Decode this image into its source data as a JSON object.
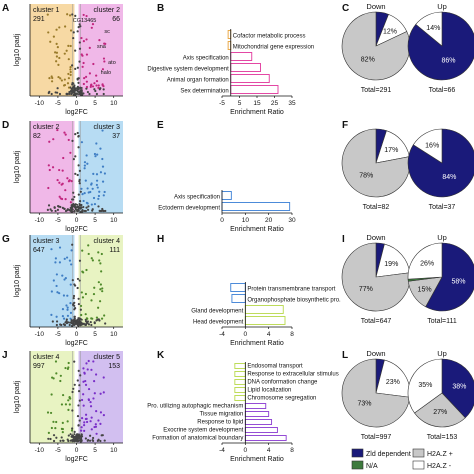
{
  "colors": {
    "cluster1": "#f7d9a4",
    "cluster2": "#f0b8e8",
    "cluster3": "#b7dcf3",
    "cluster4": "#e8f3c2",
    "cluster5": "#d2bff0",
    "pt_cluster1": "#9a7b2a",
    "pt_cluster2": "#c2267f",
    "pt_cluster3": "#3f7ec4",
    "pt_cluster4": "#4f8a2a",
    "pt_cluster5": "#7a2fc8",
    "pt_gray": "#444444",
    "bar_B": "#e0369b",
    "bar_B_alt": "#e8a33a",
    "bar_E": "#3a7fd5",
    "bar_H": "#b8d94a",
    "bar_H_alt": "#3a7fd5",
    "bar_K": "#8a3ad1",
    "bar_K_alt": "#b8d94a",
    "pie_down_gray": "#c8c8c8",
    "pie_navy": "#1a1a7a",
    "pie_green": "#3d7a3d"
  },
  "rows": [
    {
      "volcano": {
        "letter": "A",
        "ylabel": "log10 padj",
        "xlabel": "log2FC",
        "xticks": [
          "-10",
          "-5",
          "0",
          "5",
          "10"
        ],
        "left": {
          "name": "cluster 1",
          "count": "291",
          "bg": "cluster1",
          "pt": "pt_cluster1"
        },
        "right": {
          "name": "cluster 2",
          "count": "66",
          "bg": "cluster2",
          "pt": "pt_cluster2"
        },
        "annotations": [
          "CG13465",
          "sc",
          "sna",
          "ato",
          "halo"
        ]
      },
      "bars": {
        "letter": "B",
        "xlabel": "Enrichment Ratio",
        "xticks": [
          "-5",
          "5",
          "15",
          "25",
          "35"
        ],
        "chart_data": {
          "type": "bar",
          "categories": [
            "Cofactor metabolic process",
            "Mitochondrial gene expression",
            "Axis specification",
            "Digestive system development",
            "Animal organ formation",
            "Sex determination"
          ],
          "values": [
            -1.5,
            -1.5,
            12,
            17,
            22,
            27
          ],
          "xlim": [
            -5,
            35
          ]
        }
      },
      "pies": {
        "letter": "C",
        "down": {
          "title": "Down",
          "total": "Total=291",
          "labels": [
            "12%",
            "82%"
          ]
        },
        "up": {
          "title": "Up",
          "total": "Total=66",
          "labels": [
            "14%",
            "86%"
          ]
        },
        "chart_data": {
          "type": "pie",
          "down": {
            "values": [
              0.06,
              0.12,
              0.82
            ]
          },
          "up": {
            "values": [
              0.86,
              0.14
            ]
          }
        }
      }
    },
    {
      "volcano": {
        "letter": "D",
        "ylabel": "log10 padj",
        "xlabel": "log2FC",
        "xticks": [
          "-10",
          "-5",
          "0",
          "5",
          "10"
        ],
        "left": {
          "name": "cluster 2",
          "count": "82",
          "bg": "cluster2",
          "pt": "pt_cluster2"
        },
        "right": {
          "name": "cluster 3",
          "count": "37",
          "bg": "cluster3",
          "pt": "pt_cluster3"
        },
        "annotations": []
      },
      "bars": {
        "letter": "E",
        "xlabel": "Enrichment Ratio",
        "xticks": [
          "0",
          "10",
          "20",
          "30"
        ],
        "chart_data": {
          "type": "bar",
          "categories": [
            "Axis specification",
            "Ectoderm development"
          ],
          "values": [
            4,
            29
          ],
          "xlim": [
            0,
            30
          ]
        }
      },
      "pies": {
        "letter": "F",
        "down": {
          "title": "",
          "total": "Total=82",
          "labels": [
            "17%",
            "78%"
          ]
        },
        "up": {
          "title": "",
          "total": "Total=37",
          "labels": [
            "16%",
            "84%"
          ]
        },
        "chart_data": {
          "type": "pie",
          "down": {
            "values": [
              0.05,
              0.17,
              0.78
            ]
          },
          "up": {
            "values": [
              0.84,
              0.16
            ]
          }
        }
      }
    },
    {
      "volcano": {
        "letter": "G",
        "ylabel": "log10 padj",
        "xlabel": "log2FC",
        "xticks": [
          "-10",
          "-5",
          "0",
          "5",
          "10"
        ],
        "left": {
          "name": "cluster 3",
          "count": "647",
          "bg": "cluster3",
          "pt": "pt_cluster3"
        },
        "right": {
          "name": "cluster 4",
          "count": "111",
          "bg": "cluster4",
          "pt": "pt_cluster4"
        },
        "annotations": []
      },
      "bars": {
        "letter": "H",
        "xlabel": "Enrichment Ratio",
        "xticks": [
          "-4",
          "0",
          "4",
          "8"
        ],
        "chart_data": {
          "type": "bar",
          "categories": [
            "Protein transmembrane transport",
            "Organophosphate biosynthetic pro.",
            "Gland development",
            "Head development"
          ],
          "values": [
            -2.5,
            -2.3,
            6.5,
            6.8
          ],
          "xlim": [
            -4,
            8
          ]
        }
      },
      "pies": {
        "letter": "I",
        "down": {
          "title": "Down",
          "total": "Total=647",
          "labels": [
            "19%",
            "77%"
          ]
        },
        "up": {
          "title": "Up",
          "total": "Total=111",
          "labels": [
            "26%",
            "58%",
            "15%"
          ]
        },
        "chart_data": {
          "type": "pie",
          "down": {
            "values": [
              0.04,
              0.19,
              0.77
            ]
          },
          "up": {
            "values": [
              0.58,
              0.15,
              0.01,
              0.26
            ]
          }
        }
      }
    },
    {
      "volcano": {
        "letter": "J",
        "ylabel": "log10 padj",
        "xlabel": "log2FC",
        "xticks": [
          "-10",
          "-5",
          "0",
          "5",
          "10"
        ],
        "left": {
          "name": "cluster 4",
          "count": "997",
          "bg": "cluster4",
          "pt": "pt_cluster4"
        },
        "right": {
          "name": "cluster 5",
          "count": "153",
          "bg": "cluster5",
          "pt": "pt_cluster5"
        },
        "annotations": []
      },
      "bars": {
        "letter": "K",
        "xlabel": "Enrichment Ratio",
        "xticks": [
          "-4",
          "0",
          "4",
          "8"
        ],
        "chart_data": {
          "type": "bar",
          "categories": [
            "Endosomal transport",
            "Response to extracellular stimulus",
            "DNA conformation change",
            "Lipid localization",
            "Chromosome segregation",
            "Pro. utilizing autophagic mechanism",
            "Tissue migration",
            "Response to lipid",
            "Exocrine system development",
            "Formation of anatomical boundary"
          ],
          "values": [
            -1.8,
            -1.8,
            -1.8,
            -1.8,
            -1.8,
            3.5,
            4,
            4.5,
            5.5,
            7
          ],
          "xlim": [
            -4,
            8
          ]
        }
      },
      "pies": {
        "letter": "L",
        "down": {
          "title": "Down",
          "total": "Total=997",
          "labels": [
            "23%",
            "73%"
          ]
        },
        "up": {
          "title": "Up",
          "total": "Total=153",
          "labels": [
            "38%",
            "35%",
            "27%"
          ]
        },
        "chart_data": {
          "type": "pie",
          "down": {
            "values": [
              0.04,
              0.23,
              0.73
            ]
          },
          "up": {
            "values": [
              0.38,
              0.27,
              0.35
            ]
          }
        }
      }
    }
  ],
  "legend": {
    "items": [
      {
        "label": "Zld dependent",
        "color": "pie_navy"
      },
      {
        "label": "N/A",
        "color": "pie_green"
      },
      {
        "label": "H2A.Z +",
        "color": "pie_down_gray"
      },
      {
        "label": "H2A.Z -",
        "color": "#ffffff"
      }
    ]
  }
}
